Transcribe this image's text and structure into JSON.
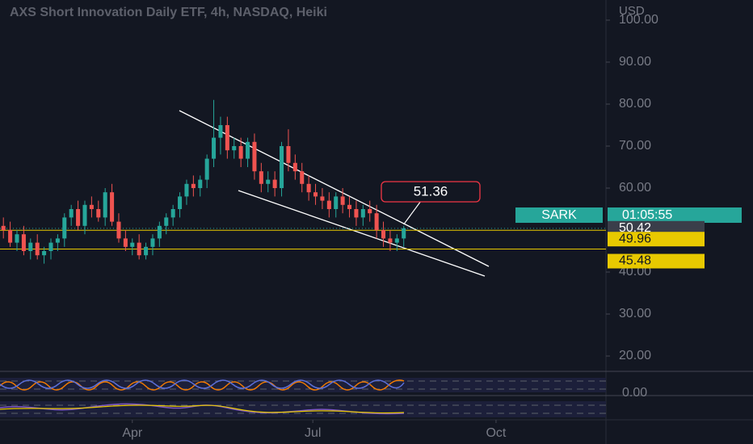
{
  "chart_data": {
    "type": "candlestick",
    "title": "AXS Short Innovation Daily ETF, 4h, NASDAQ, Heiki",
    "currency": "USD",
    "symbol": "SARK",
    "countdown": "01:05:55",
    "open": [
      51,
      50,
      47,
      49,
      45,
      47,
      44,
      45,
      47,
      48,
      53,
      55,
      51,
      56,
      55,
      53,
      59,
      52,
      48,
      46,
      47,
      44,
      46,
      48,
      51,
      53,
      55,
      58,
      61,
      60,
      62,
      67,
      72,
      75,
      69,
      70,
      67,
      71,
      64,
      61,
      62,
      60,
      70,
      66,
      64,
      61,
      59,
      58,
      57,
      55,
      58,
      56,
      55,
      53,
      55,
      54,
      50,
      48,
      47,
      48
    ],
    "high": [
      53,
      52,
      50,
      51,
      48,
      49,
      46,
      48,
      49,
      54,
      56,
      57,
      57,
      58,
      57,
      60,
      61,
      54,
      50,
      48,
      49,
      47,
      49,
      52,
      54,
      56,
      59,
      62,
      63,
      63,
      68,
      81,
      77,
      77,
      72,
      72,
      72,
      73,
      66,
      64,
      64,
      71,
      74,
      68,
      66,
      63,
      61,
      60,
      59,
      59,
      60,
      58,
      57,
      56,
      57,
      56,
      52,
      50,
      49,
      51
    ],
    "low": [
      48,
      46,
      45,
      44,
      43,
      43,
      42,
      43,
      45,
      46,
      51,
      50,
      49,
      53,
      52,
      51,
      51,
      47,
      45,
      44,
      43,
      43,
      44,
      46,
      49,
      51,
      53,
      56,
      58,
      58,
      60,
      65,
      68,
      67,
      67,
      65,
      65,
      62,
      59,
      59,
      58,
      58,
      64,
      62,
      59,
      57,
      56,
      55,
      53,
      53,
      54,
      53,
      51,
      51,
      52,
      48,
      46,
      45,
      45,
      46
    ],
    "close": [
      50,
      47,
      49,
      45,
      47,
      44,
      45,
      47,
      48,
      53,
      55,
      51,
      56,
      55,
      53,
      59,
      52,
      48,
      46,
      47,
      44,
      46,
      48,
      51,
      53,
      55,
      58,
      61,
      60,
      62,
      67,
      72,
      75,
      69,
      70,
      67,
      71,
      64,
      61,
      62,
      60,
      70,
      66,
      64,
      61,
      59,
      58,
      57,
      55,
      58,
      56,
      55,
      53,
      55,
      54,
      50,
      48,
      47,
      48,
      50.42
    ],
    "up_color": "#26a69a",
    "down_color": "#ef5350",
    "xlim": [
      -0.5,
      88.8
    ],
    "xticks": [
      {
        "value": 19,
        "label": "Apr"
      },
      {
        "value": 45.6,
        "label": "Jul"
      },
      {
        "value": 72.6,
        "label": "Oct"
      }
    ],
    "ylim": [
      16.35,
      104.8
    ],
    "yticks": [
      {
        "value": 20,
        "label": "20.00"
      },
      {
        "value": 30,
        "label": "30.00"
      },
      {
        "value": 40,
        "label": "40.00"
      },
      {
        "value": 60,
        "label": "60.00"
      },
      {
        "value": 70,
        "label": "70.00"
      },
      {
        "value": 80,
        "label": "80.00"
      },
      {
        "value": 90,
        "label": "90.00"
      },
      {
        "value": 100,
        "label": "100.00"
      }
    ],
    "last_price": 50.42,
    "levels": [
      49.96,
      45.48
    ],
    "level_color": "#e8c900",
    "callout": 51.36,
    "indicator_tick": "0.00"
  }
}
